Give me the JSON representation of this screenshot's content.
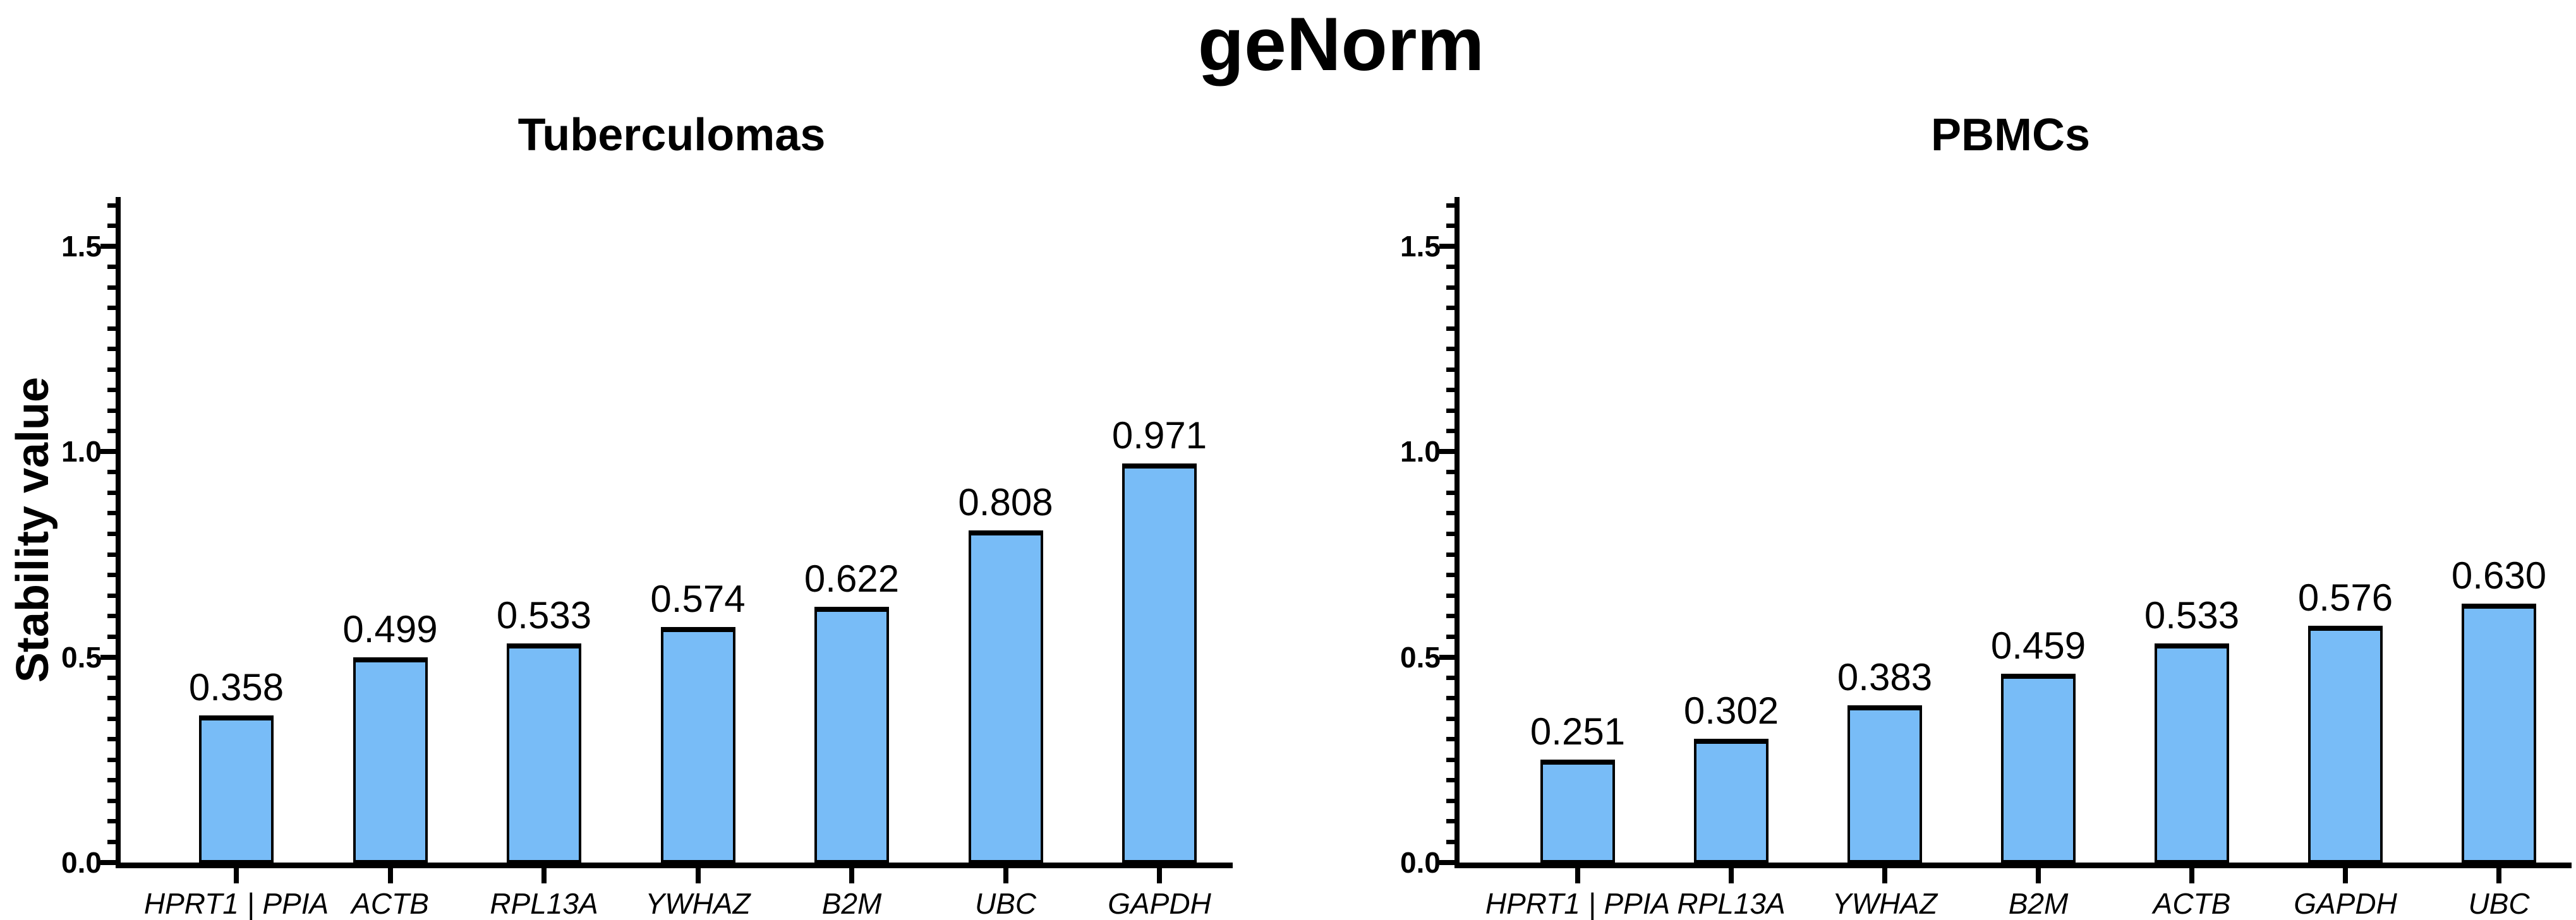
{
  "figure": {
    "title": "geNorm",
    "ylabel": "Stability value"
  },
  "chart_data": [
    {
      "type": "bar",
      "title": "Tuberculomas",
      "categories": [
        "HPRT1 | PPIA",
        "ACTB",
        "RPL13A",
        "YWHAZ",
        "B2M",
        "UBC",
        "GAPDH"
      ],
      "values": [
        0.358,
        0.499,
        0.533,
        0.574,
        0.622,
        0.808,
        0.971
      ],
      "value_labels": [
        "0.358",
        "0.499",
        "0.533",
        "0.574",
        "0.622",
        "0.808",
        "0.971"
      ],
      "ylabel": "Stability value",
      "ylim": [
        0,
        1.62
      ],
      "ytick_major": [
        0,
        0.5,
        1.0,
        1.5
      ],
      "ytick_labels": [
        "0.0",
        "0.5",
        "1.0",
        "1.5"
      ],
      "minor_tick_step": 0.05,
      "minor_tick_max": 1.6,
      "grid": false,
      "legend": "none",
      "bar_color": "#78BCF7",
      "bar_edge_color": "#000000"
    },
    {
      "type": "bar",
      "title": "PBMCs",
      "categories": [
        "HPRT1 | PPIA",
        "RPL13A",
        "YWHAZ",
        "B2M",
        "ACTB",
        "GAPDH",
        "UBC"
      ],
      "values": [
        0.251,
        0.302,
        0.383,
        0.459,
        0.533,
        0.576,
        0.63
      ],
      "value_labels": [
        "0.251",
        "0.302",
        "0.383",
        "0.459",
        "0.533",
        "0.576",
        "0.630"
      ],
      "ylabel": "",
      "ylim": [
        0,
        1.62
      ],
      "ytick_major": [
        0,
        0.5,
        1.0,
        1.5
      ],
      "ytick_labels": [
        "0.0",
        "0.5",
        "1.0",
        "1.5"
      ],
      "minor_tick_step": 0.05,
      "minor_tick_max": 1.6,
      "grid": false,
      "legend": "none",
      "bar_color": "#78BCF7",
      "bar_edge_color": "#000000"
    }
  ]
}
